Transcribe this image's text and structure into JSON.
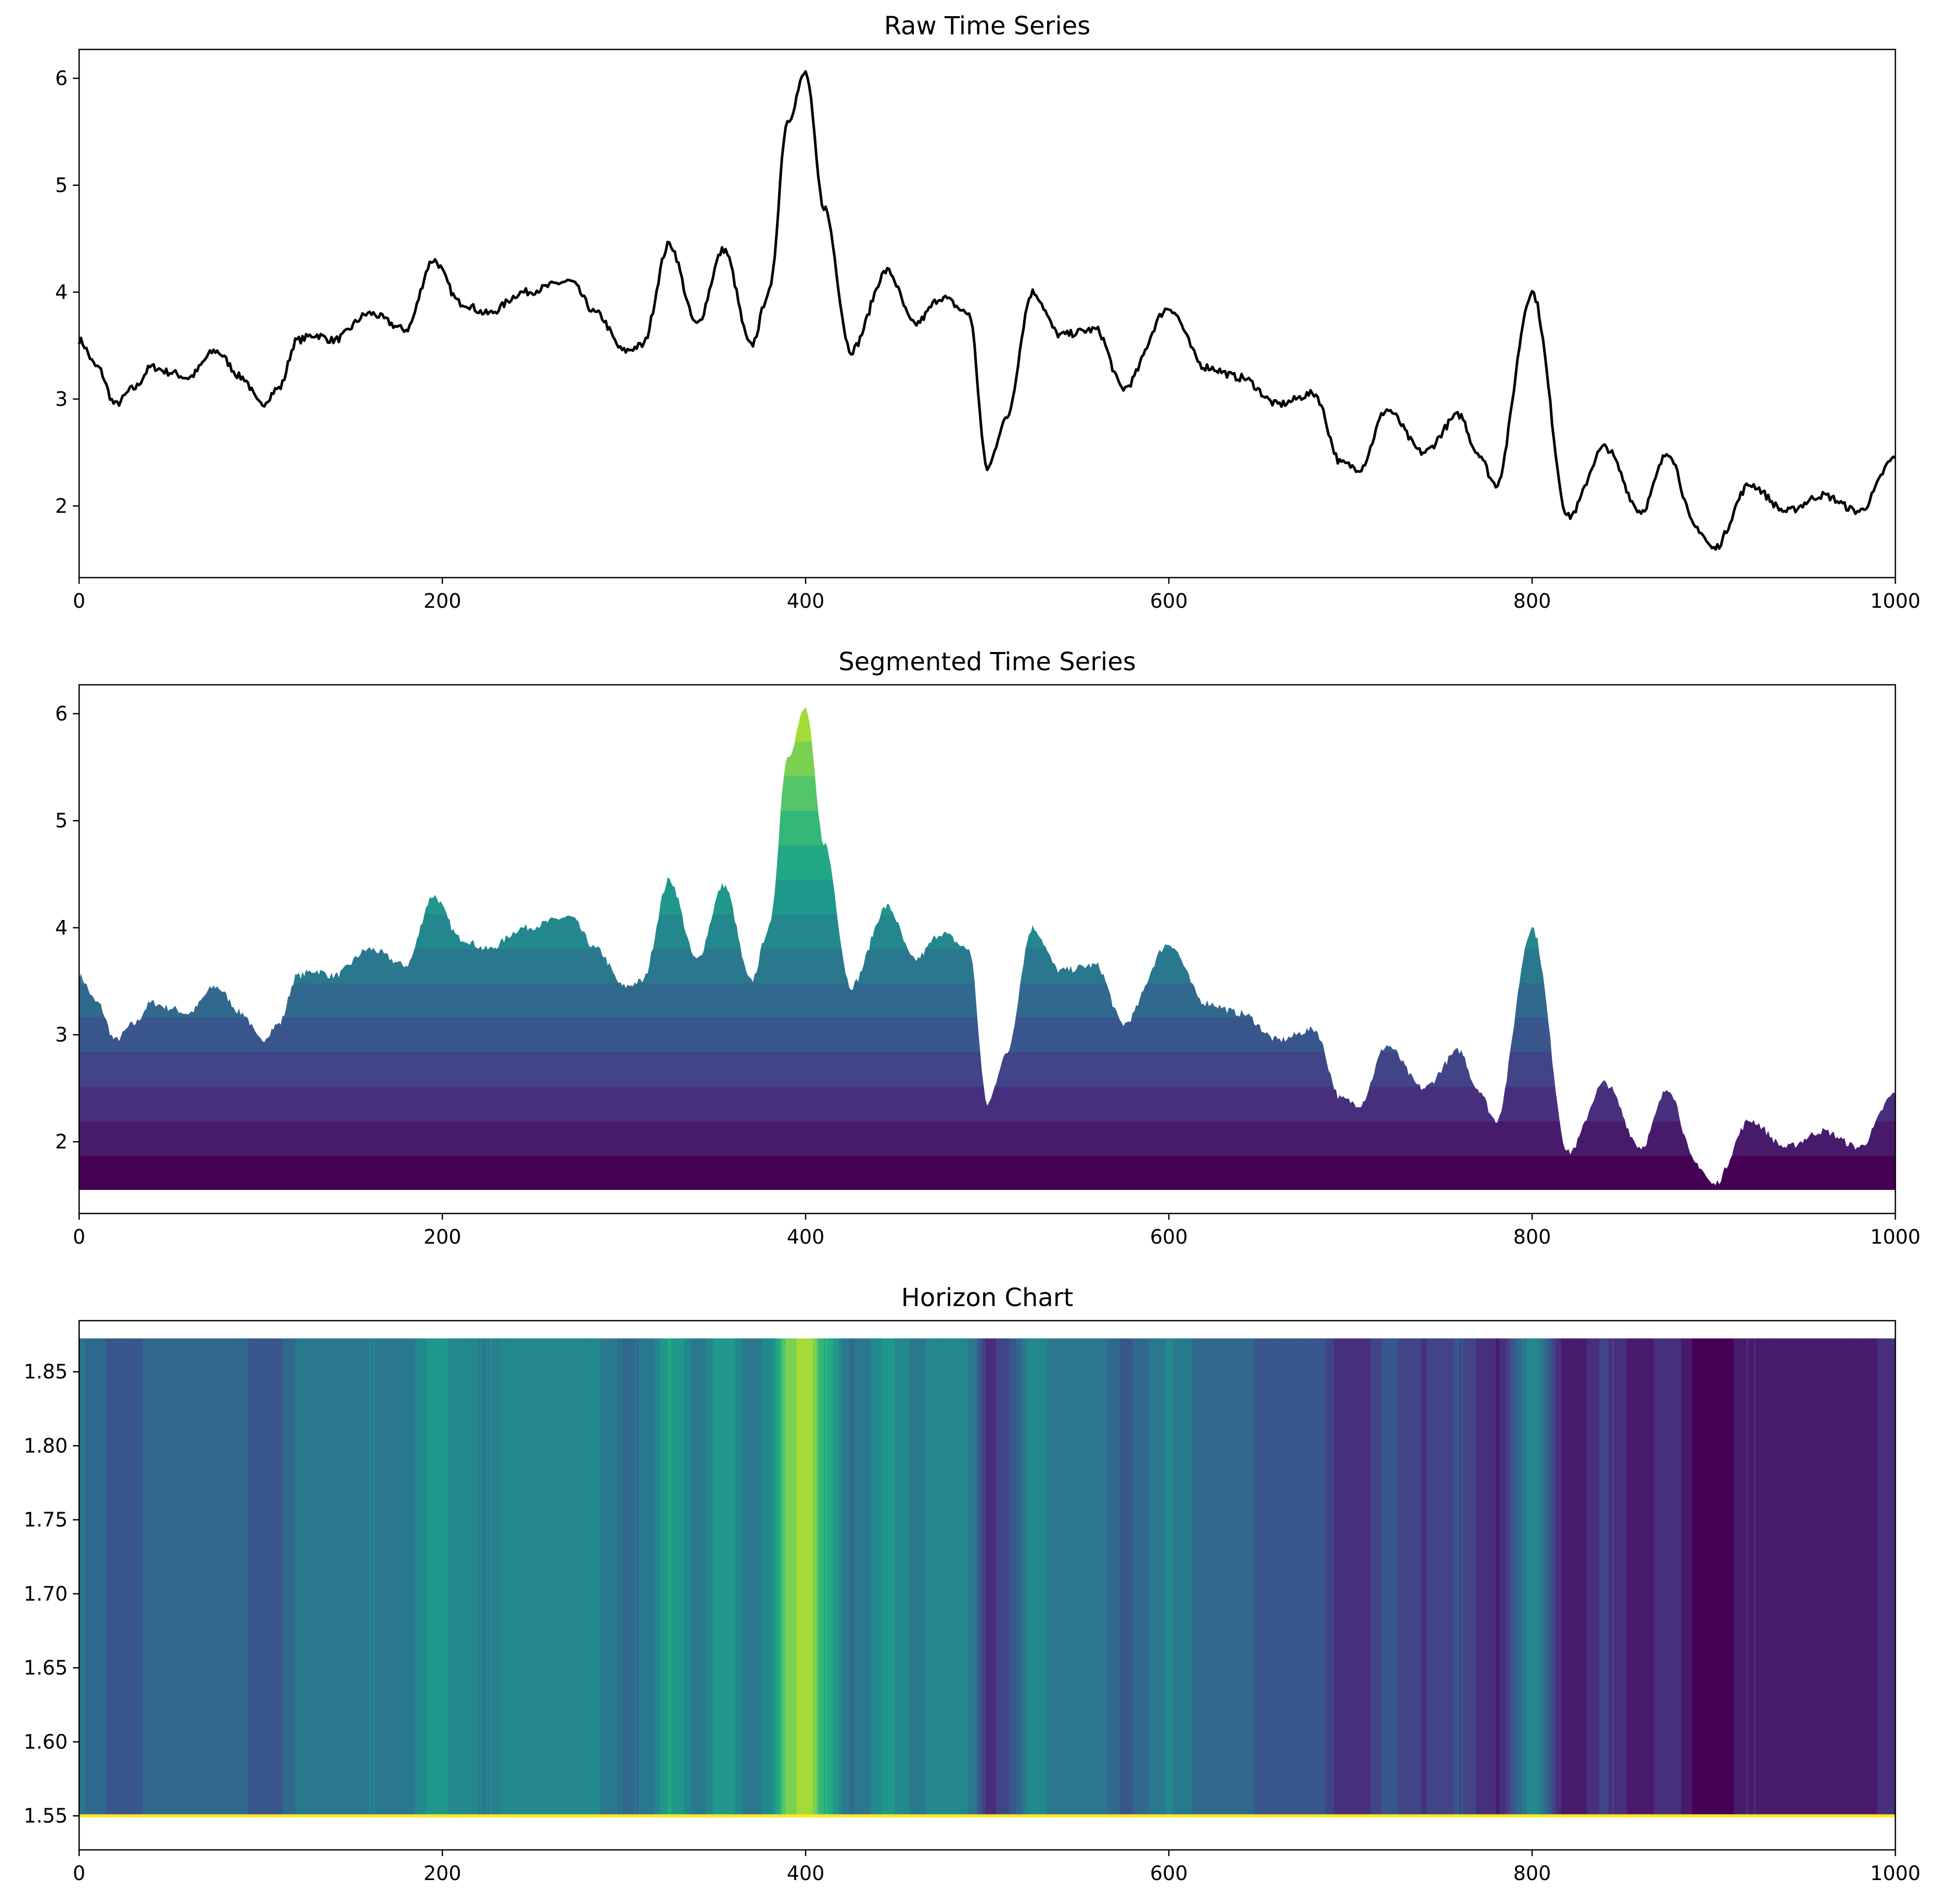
{
  "chart_data": [
    {
      "type": "line",
      "title": "Raw Time Series",
      "xlim": [
        0,
        1000
      ],
      "ylim": [
        1.33,
        6.27
      ],
      "x_ticks": [
        "0",
        "200",
        "400",
        "600",
        "800",
        "1000"
      ],
      "y_ticks": [
        "2",
        "3",
        "4",
        "5",
        "6"
      ],
      "series": [
        {
          "color": "#000000",
          "x": [
            0,
            10,
            20,
            30,
            40,
            50,
            60,
            75,
            90,
            100,
            110,
            120,
            130,
            140,
            160,
            180,
            195,
            210,
            225,
            245,
            270,
            285,
            300,
            310,
            325,
            340,
            355,
            370,
            380,
            390,
            400,
            410,
            425,
            445,
            460,
            475,
            490,
            500,
            510,
            525,
            540,
            560,
            575,
            600,
            620,
            640,
            660,
            680,
            695,
            705,
            720,
            740,
            760,
            770,
            780,
            800,
            820,
            840,
            860,
            875,
            890,
            900,
            920,
            940,
            960,
            980,
            1000
          ],
          "y": [
            3.55,
            3.3,
            2.95,
            3.1,
            3.3,
            3.25,
            3.2,
            3.45,
            3.2,
            2.95,
            3.1,
            3.55,
            3.6,
            3.55,
            3.8,
            3.65,
            4.3,
            3.9,
            3.8,
            4.0,
            4.1,
            3.8,
            3.45,
            3.5,
            4.45,
            3.7,
            4.4,
            3.5,
            4.0,
            5.6,
            6.05,
            4.8,
            3.45,
            4.2,
            3.7,
            3.95,
            3.8,
            2.35,
            2.8,
            4.0,
            3.6,
            3.65,
            3.1,
            3.85,
            3.3,
            3.2,
            2.95,
            3.05,
            2.4,
            2.35,
            2.9,
            2.5,
            2.85,
            2.5,
            2.2,
            4.0,
            1.9,
            2.55,
            1.95,
            2.5,
            1.8,
            1.6,
            2.2,
            1.95,
            2.1,
            1.95,
            2.45
          ]
        }
      ]
    },
    {
      "type": "area",
      "title": "Segmented Time Series",
      "xlim": [
        0,
        1000
      ],
      "ylim": [
        1.33,
        6.27
      ],
      "x_ticks": [
        "0",
        "200",
        "400",
        "600",
        "800",
        "1000"
      ],
      "y_ticks": [
        "2",
        "3",
        "4",
        "5",
        "6"
      ],
      "baseline": 1.55,
      "band_width": 0.3225,
      "band_colors": [
        "#440154",
        "#481a6c",
        "#472f7d",
        "#414487",
        "#39568c",
        "#31688e",
        "#2a788e",
        "#23888e",
        "#1f988b",
        "#22a884",
        "#35b779",
        "#54c568",
        "#7ad151",
        "#a5db36",
        "#d2e21b",
        "#fde725"
      ]
    },
    {
      "type": "heatmap",
      "title": "Horizon Chart",
      "xlim": [
        0,
        1000
      ],
      "ylim": [
        1.527,
        1.8845
      ],
      "x_ticks": [
        "0",
        "200",
        "400",
        "600",
        "800",
        "1000"
      ],
      "y_ticks": [
        "1.55",
        "1.60",
        "1.65",
        "1.70",
        "1.75",
        "1.80",
        "1.85"
      ],
      "band_range": [
        1.55,
        1.8725
      ]
    }
  ]
}
